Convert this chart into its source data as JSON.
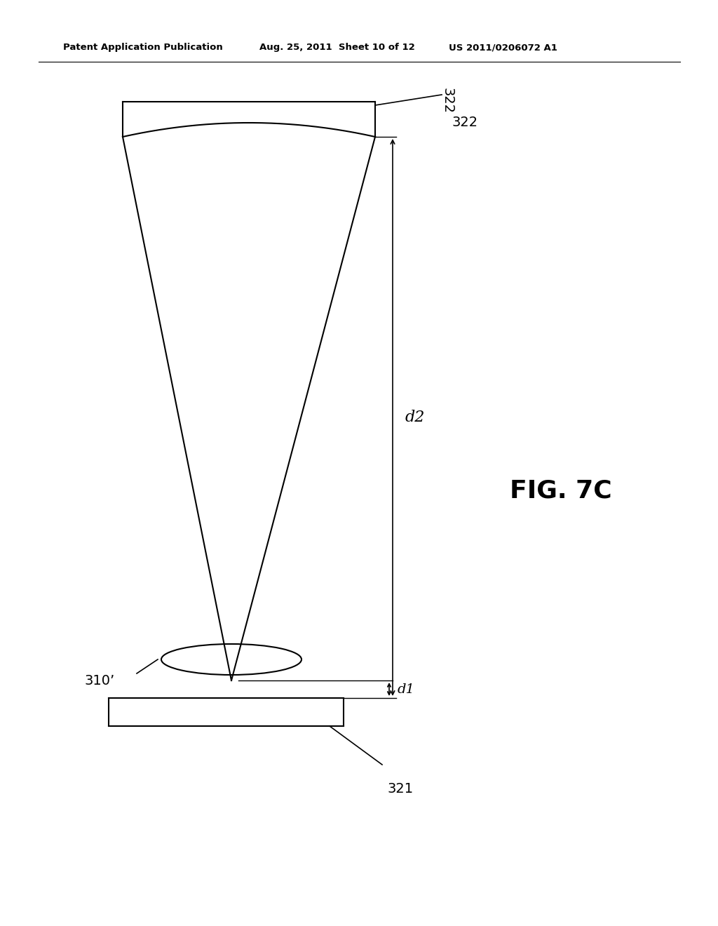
{
  "header_left": "Patent Application Publication",
  "header_mid": "Aug. 25, 2011  Sheet 10 of 12",
  "header_right": "US 2011/0206072 A1",
  "fig_label": "FIG. 7C",
  "label_322": "322",
  "label_321": "321",
  "label_310": "310’",
  "label_d1": "d1",
  "label_d2": "d2",
  "bg_color": "#ffffff",
  "line_color": "#000000"
}
